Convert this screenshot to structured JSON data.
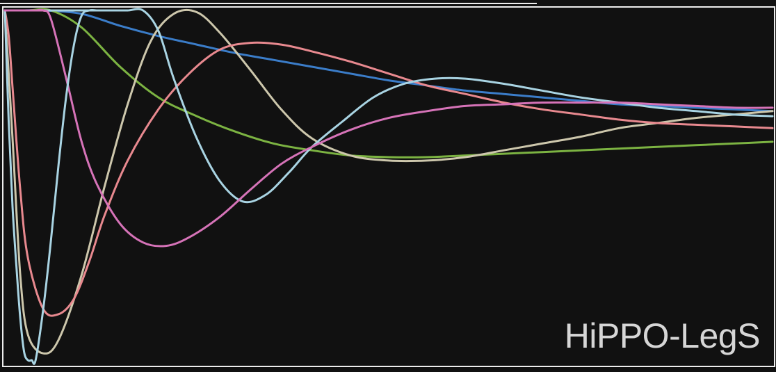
{
  "chart_data": {
    "type": "line",
    "annotation": "HiPPO-LegS",
    "xlim": [
      0,
      1
    ],
    "ylim": [
      -1.1,
      0.95
    ],
    "grid": false,
    "series": [
      {
        "color": "#3b7dc9",
        "x": [
          0,
          0.02,
          0.05,
          0.1,
          0.15,
          0.2,
          0.25,
          0.3,
          0.35,
          0.4,
          0.45,
          0.5,
          0.55,
          0.6,
          0.65,
          0.7,
          0.75,
          0.8,
          0.85,
          0.9,
          0.95,
          1.0
        ],
        "y": [
          0.95,
          0.95,
          0.95,
          0.93,
          0.86,
          0.8,
          0.75,
          0.7,
          0.66,
          0.62,
          0.58,
          0.54,
          0.51,
          0.48,
          0.46,
          0.44,
          0.42,
          0.4,
          0.39,
          0.38,
          0.37,
          0.36
        ]
      },
      {
        "color": "#7cb342",
        "x": [
          0,
          0.03,
          0.06,
          0.1,
          0.15,
          0.2,
          0.25,
          0.3,
          0.35,
          0.4,
          0.45,
          0.5,
          0.55,
          0.6,
          0.65,
          0.7,
          0.75,
          0.8,
          0.85,
          0.9,
          0.95,
          1.0
        ],
        "y": [
          0.95,
          0.95,
          0.95,
          0.85,
          0.62,
          0.44,
          0.33,
          0.24,
          0.17,
          0.13,
          0.1,
          0.09,
          0.09,
          0.1,
          0.11,
          0.12,
          0.13,
          0.14,
          0.15,
          0.16,
          0.17,
          0.18
        ]
      },
      {
        "color": "#cdc7ac",
        "x": [
          0,
          0.01,
          0.02,
          0.03,
          0.05,
          0.07,
          0.1,
          0.13,
          0.16,
          0.19,
          0.22,
          0.25,
          0.28,
          0.32,
          0.36,
          0.4,
          0.45,
          0.5,
          0.55,
          0.6,
          0.65,
          0.7,
          0.75,
          0.8,
          0.85,
          0.9,
          0.95,
          1.0
        ],
        "y": [
          0.95,
          0.2,
          -0.6,
          -0.95,
          -1.06,
          -0.98,
          -0.6,
          -0.08,
          0.4,
          0.77,
          0.93,
          0.94,
          0.82,
          0.6,
          0.37,
          0.2,
          0.1,
          0.07,
          0.07,
          0.09,
          0.13,
          0.17,
          0.21,
          0.26,
          0.29,
          0.32,
          0.34,
          0.36
        ]
      },
      {
        "color": "#e8898f",
        "x": [
          0,
          0.005,
          0.01,
          0.02,
          0.03,
          0.05,
          0.07,
          0.09,
          0.11,
          0.13,
          0.16,
          0.2,
          0.24,
          0.28,
          0.32,
          0.36,
          0.4,
          0.45,
          0.5,
          0.55,
          0.6,
          0.65,
          0.7,
          0.75,
          0.8,
          0.85,
          0.9,
          0.95,
          1.0
        ],
        "y": [
          0.95,
          0.8,
          0.5,
          -0.1,
          -0.5,
          -0.8,
          -0.83,
          -0.74,
          -0.52,
          -0.25,
          0.07,
          0.37,
          0.58,
          0.72,
          0.76,
          0.75,
          0.71,
          0.65,
          0.58,
          0.51,
          0.46,
          0.41,
          0.37,
          0.34,
          0.31,
          0.29,
          0.28,
          0.27,
          0.26
        ]
      },
      {
        "color": "#a9d4e3",
        "x": [
          0,
          0.01,
          0.02,
          0.03,
          0.04,
          0.05,
          0.06,
          0.08,
          0.1,
          0.12,
          0.14,
          0.16,
          0.18,
          0.2,
          0.22,
          0.25,
          0.28,
          0.31,
          0.34,
          0.37,
          0.4,
          0.44,
          0.48,
          0.52,
          0.56,
          0.6,
          0.65,
          0.7,
          0.75,
          0.8,
          0.85,
          0.9,
          0.95,
          1.0
        ],
        "y": [
          0.95,
          0.95,
          0.95,
          0.95,
          0.95,
          0.95,
          0.95,
          0.95,
          0.95,
          0.95,
          0.95,
          0.95,
          0.95,
          0.83,
          0.55,
          0.2,
          -0.05,
          -0.17,
          -0.13,
          0.0,
          0.15,
          0.3,
          0.44,
          0.52,
          0.55,
          0.55,
          0.52,
          0.48,
          0.44,
          0.41,
          0.38,
          0.36,
          0.34,
          0.33
        ]
      },
      {
        "color": "#d673b8",
        "x": [
          0,
          0.01,
          0.02,
          0.03,
          0.04,
          0.05,
          0.06,
          0.08,
          0.1,
          0.12,
          0.15,
          0.18,
          0.21,
          0.24,
          0.28,
          0.32,
          0.36,
          0.4,
          0.45,
          0.5,
          0.55,
          0.6,
          0.65,
          0.7,
          0.75,
          0.8,
          0.85,
          0.9,
          0.95,
          1.0
        ],
        "y": [
          0.95,
          0.95,
          0.95,
          0.95,
          0.95,
          0.95,
          0.9,
          0.55,
          0.18,
          -0.07,
          -0.3,
          -0.41,
          -0.43,
          -0.38,
          -0.26,
          -0.1,
          0.05,
          0.15,
          0.25,
          0.32,
          0.36,
          0.39,
          0.4,
          0.41,
          0.41,
          0.41,
          0.4,
          0.39,
          0.38,
          0.38
        ]
      },
      {
        "color": "#a9d4e3",
        "x": [
          0,
          0.005,
          0.01,
          0.015,
          0.02,
          0.025,
          0.03,
          0.035,
          0.04,
          0.05,
          0.06,
          0.07,
          0.08,
          0.09,
          0.1,
          0.11,
          0.12
        ],
        "y": [
          0.95,
          0.3,
          -0.2,
          -0.55,
          -0.85,
          -1.05,
          -1.1,
          -1.1,
          -1.1,
          -0.8,
          -0.4,
          0.05,
          0.45,
          0.75,
          0.92,
          0.95,
          0.95
        ]
      },
      {
        "color": "#d673b8",
        "x": [
          0,
          0.01,
          0.02,
          0.03,
          0.04,
          0.045,
          0.05
        ],
        "y": [
          0.95,
          0.95,
          0.95,
          0.95,
          0.95,
          0.95,
          0.95
        ]
      }
    ]
  }
}
